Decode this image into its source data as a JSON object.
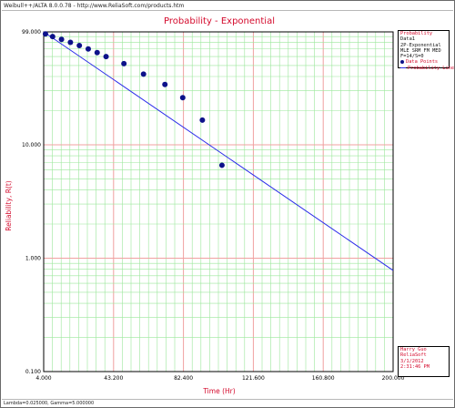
{
  "header": {
    "text": "Weibull++/ALTA 8.0.0.78 - http://www.ReliaSoft.com/products.htm"
  },
  "footer": {
    "text": "Lambda=0.025000, Gamma=5.000000"
  },
  "legend": {
    "title": "Probability",
    "lines": [
      "Data1",
      "2P-Exponential",
      "MLE SRM FM MED",
      "F=14/S=0"
    ],
    "points_label": "Data Points",
    "line_label": "Probability Line"
  },
  "user_info": {
    "name": "Harry Guo",
    "company": "ReliaSoft",
    "date": "3/1/2012",
    "time": "2:31:46 PM"
  },
  "colors": {
    "title": "#d40a2c",
    "axis_label": "#d40a2c",
    "minor_grid": "#9be79b",
    "major_grid": "#f0a0a0",
    "points": "#0d128a",
    "line": "#2b2bea"
  },
  "chart_data": {
    "type": "scatter",
    "title": "Probability - Exponential",
    "xlabel": "Time (Hr)",
    "ylabel": "Reliability, R(t)",
    "xlim": [
      4,
      200
    ],
    "ylim": [
      0.1,
      99
    ],
    "yscale": "log",
    "grid": true,
    "x_ticks": [
      "4.000",
      "43.200",
      "82.400",
      "121.600",
      "160.800",
      "200.000"
    ],
    "y_ticks": [
      "99.000",
      "10.000",
      "1.000",
      "0.100"
    ],
    "series": [
      {
        "name": "Data Points",
        "kind": "points",
        "x": [
          5,
          9,
          14,
          19,
          24,
          29,
          34,
          39,
          49,
          60,
          72,
          82,
          93,
          104
        ],
        "y": [
          95,
          90,
          85,
          80,
          75,
          70,
          65,
          60,
          52,
          42,
          34,
          26,
          16.5,
          6.6
        ]
      },
      {
        "name": "Probability Line",
        "kind": "line",
        "x": [
          4,
          200
        ],
        "y": [
          99,
          0.78
        ]
      }
    ]
  }
}
